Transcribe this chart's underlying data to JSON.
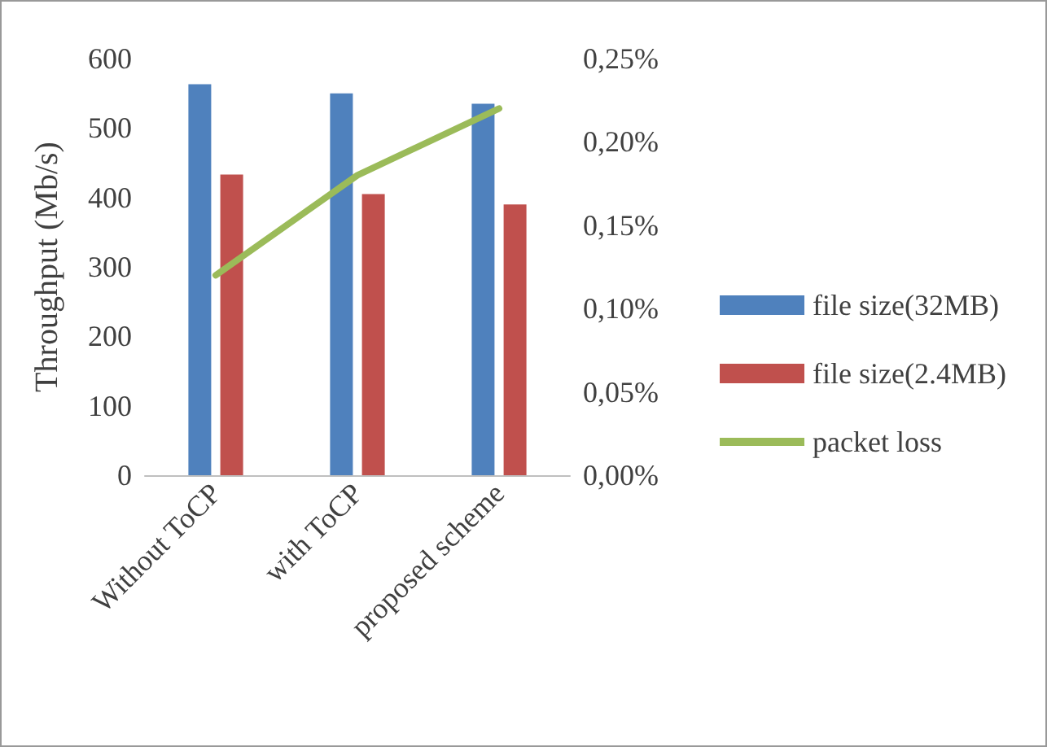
{
  "chart_data": {
    "type": "bar",
    "ylabel": "Throughput (Mb/s)",
    "categories": [
      "Without ToCP",
      "with ToCP",
      "proposed scheme"
    ],
    "series": [
      {
        "name": "file size(32MB)",
        "color": "#4f81bd",
        "values": [
          563,
          550,
          535
        ]
      },
      {
        "name": "file size(2.4MB)",
        "color": "#c0504d",
        "values": [
          433,
          405,
          390
        ]
      },
      {
        "name": "packet loss",
        "type": "line",
        "axis": "y2",
        "color": "#9bbb59",
        "values": [
          0.12,
          0.18,
          0.22
        ]
      }
    ],
    "ylim": [
      0,
      600
    ],
    "yticks": [
      0,
      100,
      200,
      300,
      400,
      500,
      600
    ],
    "y2lim": [
      0,
      0.25
    ],
    "y2ticks": [
      {
        "value": 0,
        "label": "0,00%"
      },
      {
        "value": 0.05,
        "label": "0,05%"
      },
      {
        "value": 0.1,
        "label": "0,10%"
      },
      {
        "value": 0.15,
        "label": "0,15%"
      },
      {
        "value": 0.2,
        "label": "0,20%"
      },
      {
        "value": 0.25,
        "label": "0,25%"
      }
    ],
    "grid": false,
    "legend": "right",
    "marker": "none",
    "line_style": "solid"
  }
}
